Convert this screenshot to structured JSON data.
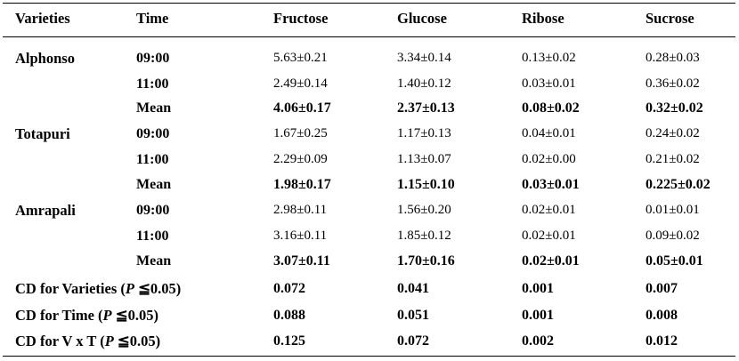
{
  "headers": [
    "Varieties",
    "Time",
    "Fructose",
    "Glucose",
    "Ribose",
    "Sucrose"
  ],
  "groups": [
    {
      "variety": "Alphonso",
      "rows": [
        {
          "time": "09:00",
          "values": [
            "5.63±0.21",
            "3.34±0.14",
            "0.13±0.02",
            "0.28±0.03"
          ]
        },
        {
          "time": "11:00",
          "values": [
            "2.49±0.14",
            "1.40±0.12",
            "0.03±0.01",
            "0.36±0.02"
          ]
        },
        {
          "time": "Mean",
          "values": [
            "4.06±0.17",
            "2.37±0.13",
            "0.08±0.02",
            "0.32±0.02"
          ]
        }
      ]
    },
    {
      "variety": "Totapuri",
      "rows": [
        {
          "time": "09:00",
          "values": [
            "1.67±0.25",
            "1.17±0.13",
            "0.04±0.01",
            "0.24±0.02"
          ]
        },
        {
          "time": "11:00",
          "values": [
            "2.29±0.09",
            "1.13±0.07",
            "0.02±0.00",
            "0.21±0.02"
          ]
        },
        {
          "time": "Mean",
          "values": [
            "1.98±0.17",
            "1.15±0.10",
            "0.03±0.01",
            "0.225±0.02"
          ]
        }
      ]
    },
    {
      "variety": "Amrapali",
      "rows": [
        {
          "time": "09:00",
          "values": [
            "2.98±0.11",
            "1.56±0.20",
            "0.02±0.01",
            "0.01±0.01"
          ]
        },
        {
          "time": "11:00",
          "values": [
            "3.16±0.11",
            "1.85±0.12",
            "0.02±0.01",
            "0.09±0.02"
          ]
        },
        {
          "time": "Mean",
          "values": [
            "3.07±0.11",
            "1.70±0.16",
            "0.02±0.01",
            "0.05±0.01"
          ]
        }
      ]
    }
  ],
  "cd_rows": [
    {
      "label_pre": "CD for Varieties (",
      "label_p": "P",
      "label_post": " ≦0.05)",
      "values": [
        "0.072",
        "0.041",
        "0.001",
        "0.007"
      ]
    },
    {
      "label_pre": "CD for Time (",
      "label_p": "P",
      "label_post": " ≦0.05)",
      "values": [
        "0.088",
        "0.051",
        "0.001",
        "0.008"
      ]
    },
    {
      "label_pre": "CD for V x T (",
      "label_p": "P",
      "label_post": " ≦0.05)",
      "values": [
        "0.125",
        "0.072",
        "0.002",
        "0.012"
      ]
    }
  ]
}
